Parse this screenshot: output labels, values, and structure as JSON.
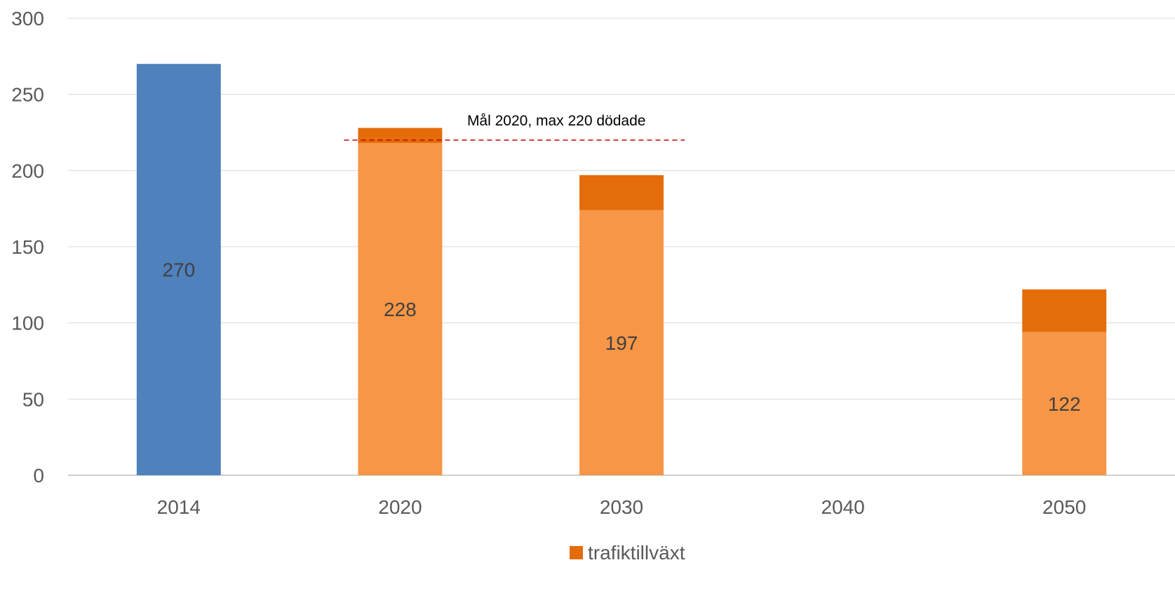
{
  "chart_data": {
    "type": "bar",
    "stacked": true,
    "categories": [
      "2014",
      "2020",
      "2030",
      "2040",
      "2050"
    ],
    "totals": [
      270,
      228,
      197,
      null,
      122
    ],
    "series": [
      {
        "name": "",
        "color": "#4f81bd",
        "values": [
          270,
          null,
          null,
          null,
          null
        ]
      },
      {
        "name": "",
        "color": "#f79646",
        "values": [
          null,
          218,
          174,
          null,
          94
        ]
      },
      {
        "name": "trafiktillväxt",
        "color": "#e46c0a",
        "values": [
          null,
          10,
          23,
          null,
          28
        ]
      }
    ],
    "data_labels": [
      "270",
      "228",
      "197",
      "",
      "122"
    ],
    "ylim": [
      0,
      300
    ],
    "yticks": [
      0,
      50,
      100,
      150,
      200,
      250,
      300
    ],
    "grid": true,
    "reference_line": {
      "value": 220,
      "label": "Mål 2020, max 220 dödade",
      "color": "#c00000",
      "style": "dashed"
    },
    "legend": {
      "position": "bottom",
      "entries": [
        {
          "label": "trafiktillväxt",
          "color": "#e46c0a"
        }
      ]
    },
    "title": "",
    "xlabel": "",
    "ylabel": ""
  }
}
